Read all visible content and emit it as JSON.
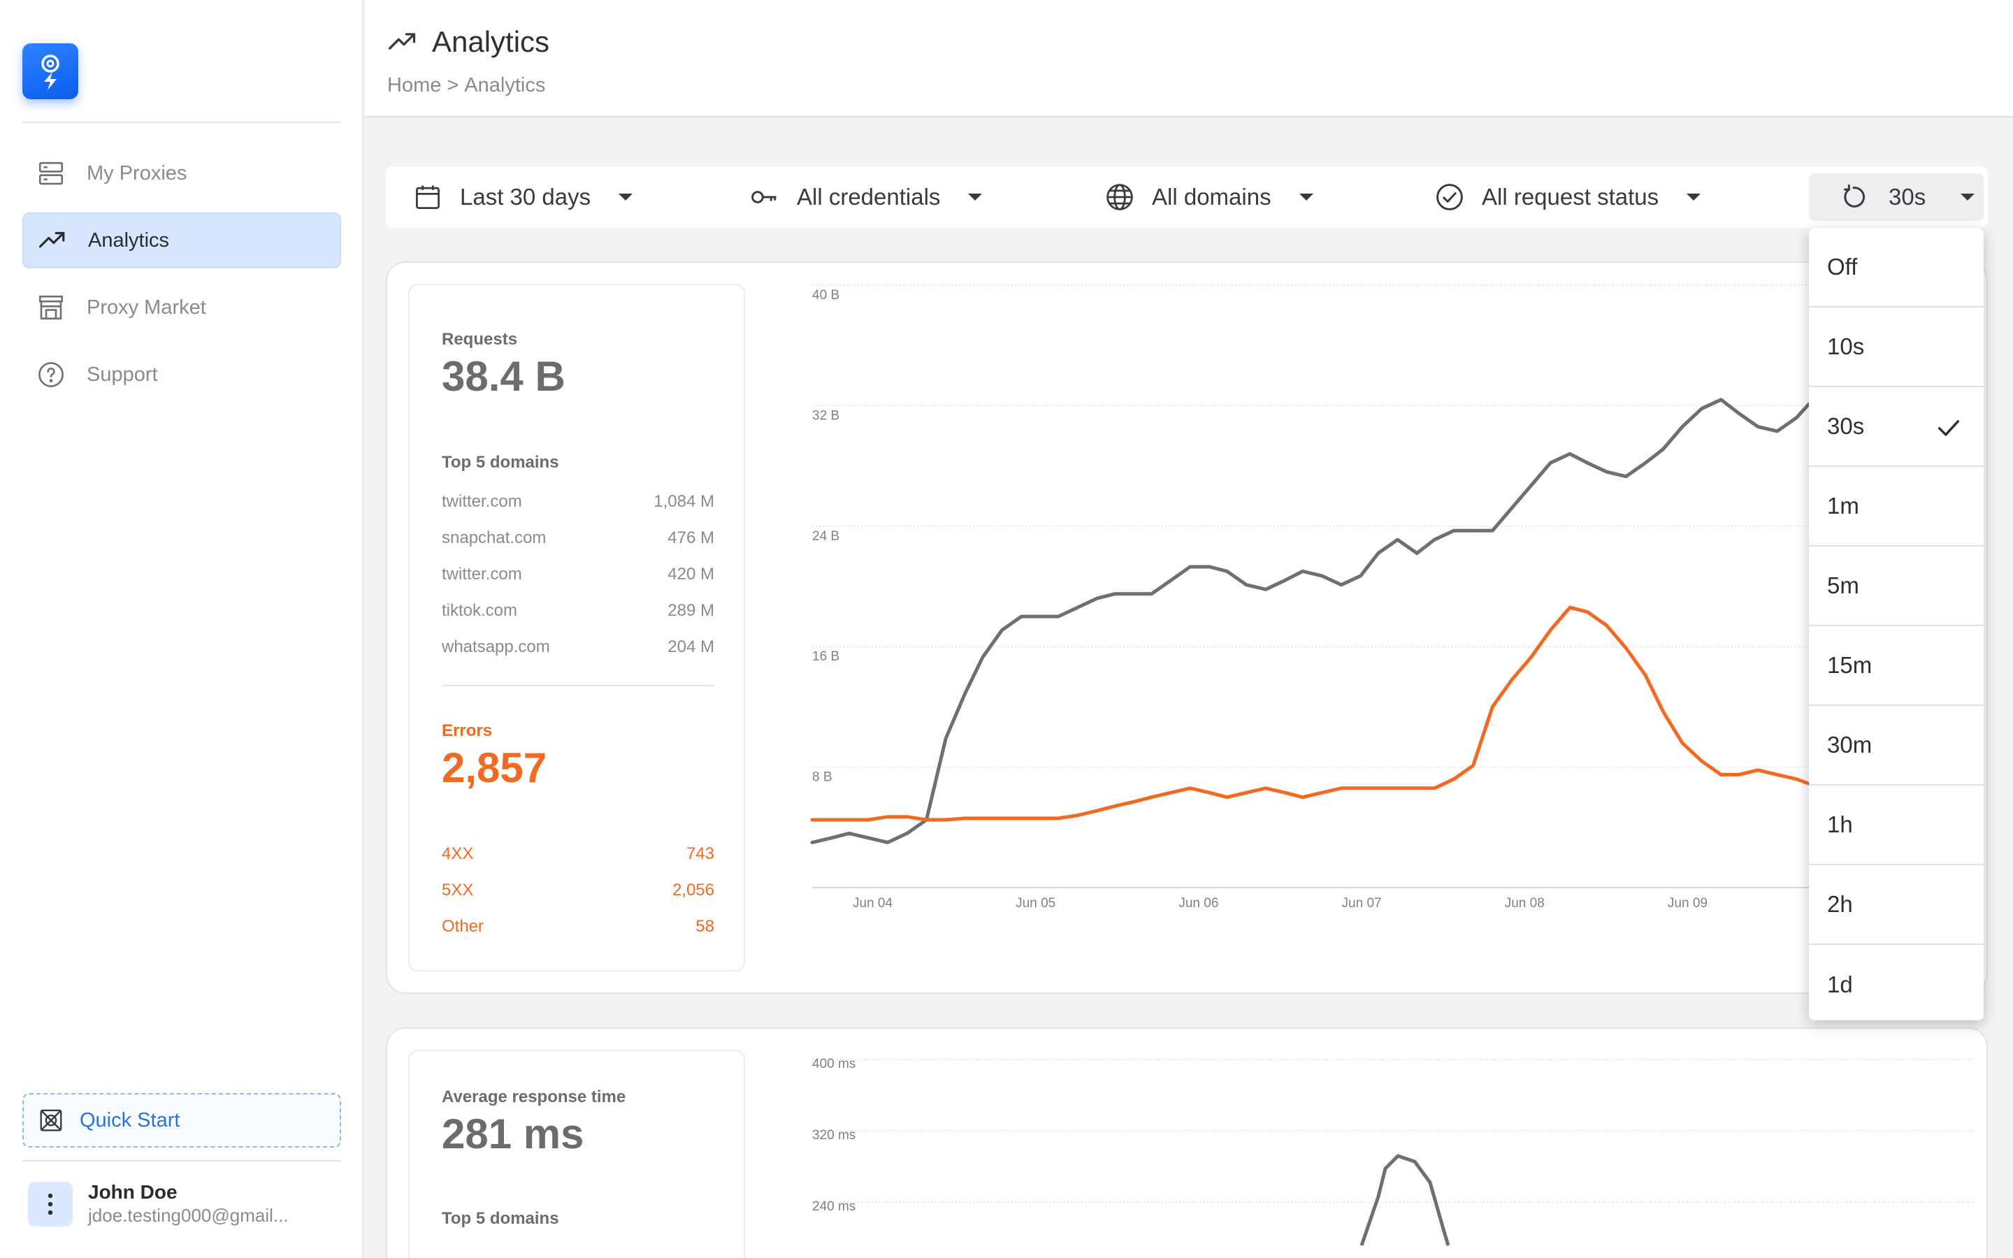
{
  "sidebar": {
    "nav": [
      {
        "label": "My Proxies",
        "icon": "server-icon"
      },
      {
        "label": "Analytics",
        "icon": "trending-up-icon",
        "active": true
      },
      {
        "label": "Proxy Market",
        "icon": "store-icon"
      },
      {
        "label": "Support",
        "icon": "help-circle-icon"
      }
    ],
    "quick_start": "Quick Start",
    "user": {
      "name": "John Doe",
      "email": "jdoe.testing000@gmail..."
    }
  },
  "header": {
    "title": "Analytics",
    "breadcrumb": [
      "Home",
      ">",
      "Analytics"
    ]
  },
  "filters": {
    "date_range": "Last 30 days",
    "credentials": "All credentials",
    "domains": "All domains",
    "request_status": "All request status",
    "refresh": "30s"
  },
  "refresh_dropdown": {
    "options": [
      "Off",
      "10s",
      "30s",
      "1m",
      "5m",
      "15m",
      "30m",
      "1h",
      "2h",
      "1d"
    ],
    "selected": "30s"
  },
  "requests_card": {
    "requests_label": "Requests",
    "requests_value": "38.4 B",
    "top_domains_label": "Top 5 domains",
    "top_domains": [
      {
        "domain": "twitter.com",
        "value": "1,084 M"
      },
      {
        "domain": "snapchat.com",
        "value": "476 M"
      },
      {
        "domain": "twitter.com",
        "value": "420 M"
      },
      {
        "domain": "tiktok.com",
        "value": "289 M"
      },
      {
        "domain": "whatsapp.com",
        "value": "204 M"
      }
    ],
    "errors_label": "Errors",
    "errors_value": "2,857",
    "errors": [
      {
        "label": "4XX",
        "value": "743"
      },
      {
        "label": "5XX",
        "value": "2,056"
      },
      {
        "label": "Other",
        "value": "58"
      }
    ]
  },
  "response_card": {
    "label": "Average response time",
    "value": "281 ms",
    "top_domains_label": "Top 5 domains"
  },
  "colors": {
    "requests_line": "#6f6f73",
    "errors_line": "#f26a21",
    "accent": "#1e6ff5"
  },
  "chart_data": [
    {
      "type": "line",
      "y_ticks": [
        "40 B",
        "32 B",
        "24 B",
        "16 B",
        "8 B"
      ],
      "ylim": [
        0,
        40
      ],
      "x_ticks": [
        "Jun 04",
        "Jun 05",
        "Jun 06",
        "Jun 07",
        "Jun 08",
        "Jun 09"
      ],
      "x": [
        0,
        0.11,
        0.21,
        0.32,
        0.43,
        0.54,
        0.65,
        0.76,
        0.87,
        0.97,
        1.08,
        1.19,
        1.29,
        1.4,
        1.51,
        1.62,
        1.72,
        1.83,
        1.93,
        2.04,
        2.15,
        2.26,
        2.36,
        2.47,
        2.58,
        2.69,
        2.79,
        2.9,
        3.01,
        3.12,
        3.22,
        3.33,
        3.44,
        3.54,
        3.65,
        3.76,
        3.87,
        3.98,
        4.09,
        4.2,
        4.31,
        4.41,
        4.52,
        4.63,
        4.74,
        4.84,
        4.95,
        5.06,
        5.17,
        5.27,
        5.38,
        5.49,
        5.6,
        5.67
      ],
      "series": [
        {
          "values": [
            3.0,
            3.3,
            3.6,
            3.3,
            3.0,
            3.6,
            4.5,
            9.9,
            12.9,
            15.3,
            17.1,
            18.0,
            18.0,
            18.0,
            18.6,
            19.2,
            19.5,
            19.5,
            19.5,
            20.4,
            21.3,
            21.3,
            21.0,
            20.1,
            19.8,
            20.4,
            21.0,
            20.7,
            20.1,
            20.7,
            22.2,
            23.1,
            22.2,
            23.1,
            23.7,
            23.7,
            23.7,
            25.2,
            26.7,
            28.2,
            28.8,
            28.2,
            27.6,
            27.3,
            28.2,
            29.1,
            30.6,
            31.8,
            32.4,
            31.5,
            30.6,
            30.3,
            31.2,
            32.1
          ]
        },
        {
          "values": [
            4.5,
            4.5,
            4.5,
            4.5,
            4.7,
            4.7,
            4.5,
            4.5,
            4.6,
            4.6,
            4.6,
            4.6,
            4.6,
            4.6,
            4.8,
            5.1,
            5.4,
            5.7,
            6.0,
            6.3,
            6.6,
            6.3,
            6.0,
            6.3,
            6.6,
            6.3,
            6.0,
            6.3,
            6.6,
            6.6,
            6.6,
            6.6,
            6.6,
            6.6,
            7.2,
            8.1,
            12.0,
            13.8,
            15.3,
            17.1,
            18.6,
            18.3,
            17.4,
            15.9,
            14.1,
            11.7,
            9.6,
            8.4,
            7.5,
            7.5,
            7.8,
            7.5,
            7.2,
            6.9
          ]
        }
      ]
    },
    {
      "type": "line",
      "y_ticks": [
        "400 ms",
        "320 ms",
        "240 ms"
      ],
      "ylim": [
        0,
        400
      ],
      "series": [
        {
          "values": [
            null
          ]
        }
      ]
    }
  ]
}
